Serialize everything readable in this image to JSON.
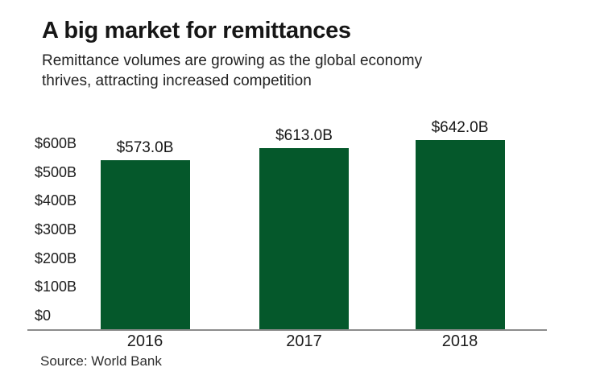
{
  "header": {
    "title": "A big market for remittances",
    "subtitle_lines": [
      "Remittance volumes are growing as the global economy",
      "thrives, attracting increased competition"
    ]
  },
  "source_note": "Source: World Bank",
  "colors": {
    "bar": "#05582b",
    "axis_line": "#8c8c8c",
    "text": "#161616"
  },
  "chart_data": {
    "type": "bar",
    "title": "A big market for remittances",
    "subtitle": "Remittance volumes are growing as the global economy thrives, attracting increased competition",
    "categories": [
      "2016",
      "2017",
      "2018"
    ],
    "values": [
      573,
      613,
      642
    ],
    "value_labels": [
      "$573.0B",
      "$613.0B",
      "$642.0B"
    ],
    "unit": "USD billions",
    "xlabel": "",
    "ylabel": "",
    "ylim": [
      0,
      650
    ],
    "y_ticks": [
      {
        "label": "$600B",
        "value": 600
      },
      {
        "label": "$500B",
        "value": 500
      },
      {
        "label": "$400B",
        "value": 400
      },
      {
        "label": "$300B",
        "value": 300
      },
      {
        "label": "$200B",
        "value": 200
      },
      {
        "label": "$100B",
        "value": 100
      },
      {
        "label": "$0",
        "value": 0
      }
    ],
    "grid": false,
    "legend": "none",
    "source": "Source: World Bank"
  }
}
